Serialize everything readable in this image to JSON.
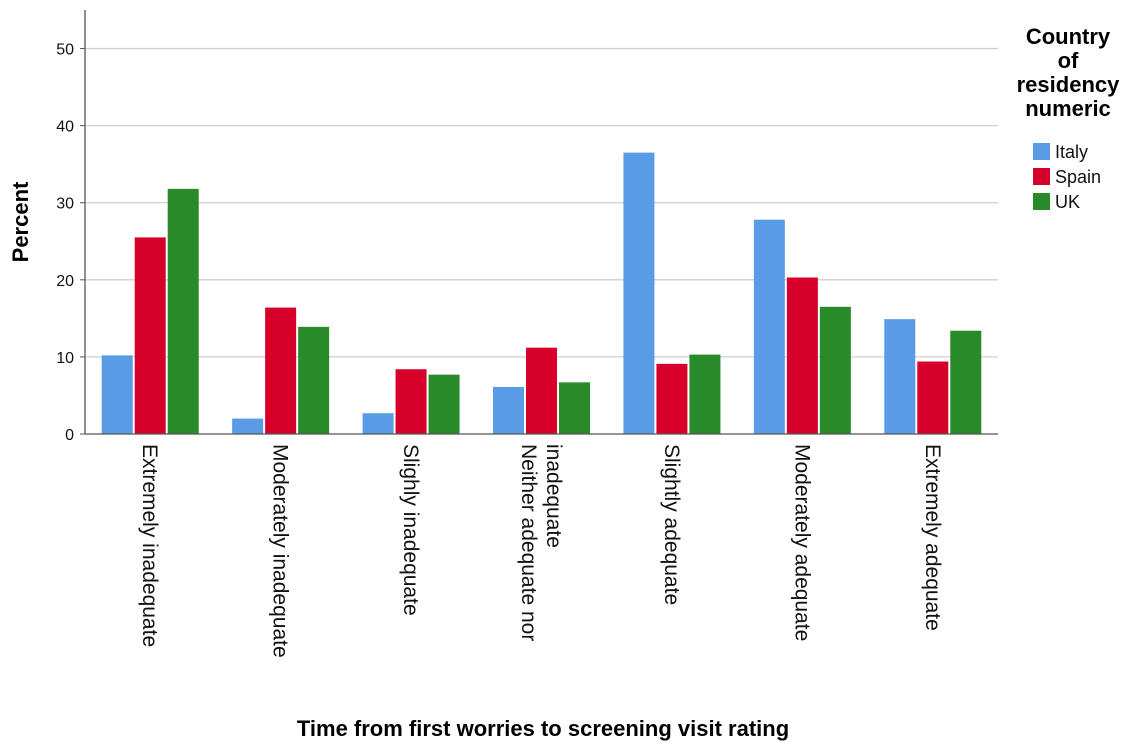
{
  "chart_data": {
    "type": "bar",
    "xlabel": "Time from first worries to screening visit rating",
    "ylabel": "Percent",
    "ylim": [
      0,
      55
    ],
    "yticks": [
      0,
      10,
      20,
      30,
      40,
      50
    ],
    "grid": true,
    "legend_position": "right",
    "legend_title": [
      "Country",
      "of",
      "residency",
      "numeric"
    ],
    "categories": [
      [
        "Extremely inadequate"
      ],
      [
        "Moderately inadequate"
      ],
      [
        "Slighly inadequate"
      ],
      [
        "Neither adequate nor",
        "inadequate"
      ],
      [
        "Slightly adequate"
      ],
      [
        "Moderately adequate"
      ],
      [
        "Extremely adequate"
      ]
    ],
    "series": [
      {
        "name": "Italy",
        "color": "#5a9be6",
        "values": [
          10.2,
          2.0,
          2.7,
          6.1,
          36.5,
          27.8,
          14.9
        ]
      },
      {
        "name": "Spain",
        "color": "#d6002b",
        "values": [
          25.5,
          16.4,
          8.4,
          11.2,
          9.1,
          20.3,
          9.4
        ]
      },
      {
        "name": "UK",
        "color": "#288a28",
        "values": [
          31.8,
          13.9,
          7.7,
          6.7,
          10.3,
          16.5,
          13.4
        ]
      }
    ]
  }
}
